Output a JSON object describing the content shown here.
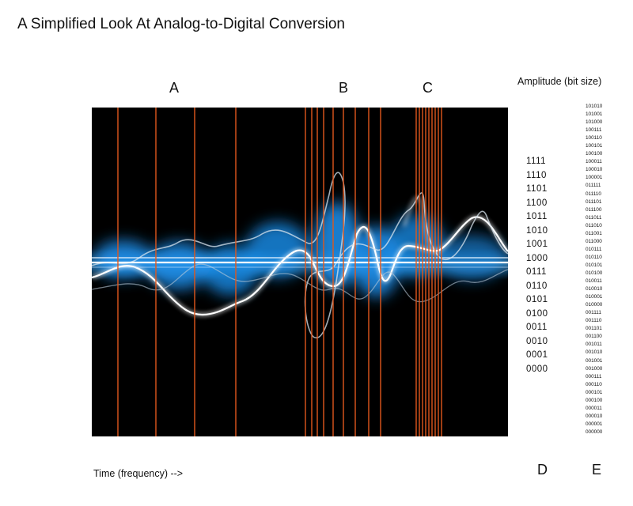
{
  "title": "A Simplified Look At Analog-to-Digital Conversion",
  "region_labels": {
    "a": "A",
    "b": "B",
    "c": "C",
    "d": "D",
    "e": "E"
  },
  "amplitude_title": "Amplitude (bit size)",
  "x_axis_label": "Time (frequency) -->",
  "scale_4bit": [
    "1111",
    "1110",
    "1101",
    "1100",
    "1011",
    "1010",
    "1001",
    "1000",
    "0111",
    "0110",
    "0101",
    "0100",
    "0011",
    "0010",
    "0001",
    "0000"
  ],
  "scale_6bit": [
    "101010",
    "101001",
    "101000",
    "100111",
    "100110",
    "100101",
    "100100",
    "100011",
    "100010",
    "100001",
    "011111",
    "011110",
    "011101",
    "011100",
    "011011",
    "011010",
    "011001",
    "011000",
    "010111",
    "010110",
    "010101",
    "010100",
    "010011",
    "010010",
    "010001",
    "010000",
    "001111",
    "001110",
    "001101",
    "001100",
    "001011",
    "001010",
    "001001",
    "001000",
    "000111",
    "000110",
    "000101",
    "000100",
    "000011",
    "000010",
    "000001",
    "000000"
  ],
  "colors": {
    "sample_line": "#e0571c",
    "glow": "#1e9bff",
    "wave": "#ffffff",
    "background": "#000000"
  },
  "sampling_regions": [
    {
      "label": "A",
      "description_count": 5
    },
    {
      "label": "B",
      "description_count": 9
    },
    {
      "label": "C",
      "description_count": 9
    }
  ]
}
